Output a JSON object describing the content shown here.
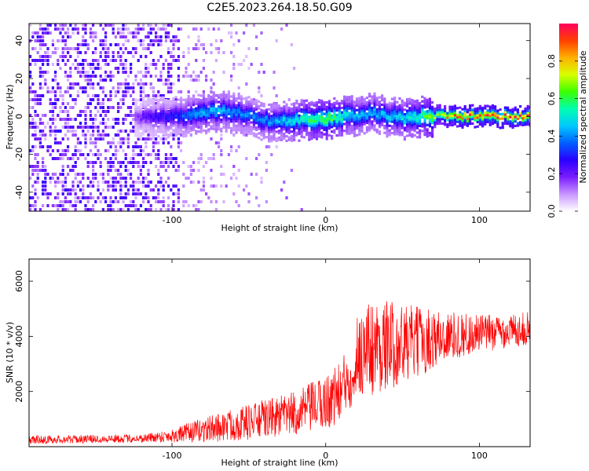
{
  "title": "C2E5.2023.264.18.50.G09",
  "chart_data": [
    {
      "type": "heatmap",
      "xlabel": "Height of straight line (km)",
      "ylabel": "Frequency (Hz)",
      "xlim": [
        -193,
        133
      ],
      "ylim": [
        -50,
        49
      ],
      "xticks": [
        -100,
        0,
        100
      ],
      "xtick_labels": [
        "-100",
        "0",
        "100"
      ],
      "yticks": [
        -40,
        -20,
        0,
        20,
        40
      ],
      "ytick_labels": [
        "-40",
        "-20",
        "0",
        "20",
        "40"
      ],
      "colorbar": {
        "label": "Normalized spectral amplitude",
        "range": [
          0,
          1
        ],
        "ticks": [
          0.0,
          0.2,
          0.4,
          0.6,
          0.8
        ],
        "tick_labels": [
          "0.0",
          "0.2",
          "0.4",
          "0.6",
          "0.8"
        ],
        "colormap": [
          "#ffffff",
          "#c896ff",
          "#7a1cff",
          "#2a00ff",
          "#0060ff",
          "#00c8ff",
          "#00ffb0",
          "#3cff00",
          "#d8ff00",
          "#ffb000",
          "#ff4000",
          "#ff0060"
        ]
      },
      "ridge": {
        "x": [
          -125,
          -115,
          -100,
          -90,
          -80,
          -70,
          -60,
          -50,
          -40,
          -30,
          -20,
          -10,
          0,
          10,
          20,
          30,
          40,
          50,
          60,
          70,
          80,
          90,
          100,
          110,
          120,
          133
        ],
        "frequency": [
          -1,
          0,
          0,
          1,
          2,
          3,
          2,
          0,
          -2,
          -3,
          -2,
          -1,
          -1,
          0,
          1,
          2,
          0,
          -1,
          0,
          0,
          0,
          0,
          0,
          0,
          0,
          0
        ],
        "amplitude": [
          0.15,
          0.25,
          0.3,
          0.4,
          0.45,
          0.45,
          0.42,
          0.38,
          0.4,
          0.45,
          0.5,
          0.6,
          0.65,
          0.55,
          0.45,
          0.45,
          0.45,
          0.5,
          0.55,
          0.7,
          0.85,
          0.9,
          0.9,
          0.92,
          0.92,
          0.92
        ]
      },
      "noise_region": {
        "x_start": -193,
        "x_dense_end": -95,
        "x_sparse_end": -15
      }
    },
    {
      "type": "line",
      "xlabel": "Height of straight line (km)",
      "ylabel": "SNR (10 * v/v)",
      "xlim": [
        -193,
        133
      ],
      "ylim": [
        0,
        6800
      ],
      "xticks": [
        -100,
        0,
        100
      ],
      "xtick_labels": [
        "-100",
        "0",
        "100"
      ],
      "yticks": [
        2000,
        4000,
        6000
      ],
      "ytick_labels": [
        "2000",
        "4000",
        "6000"
      ],
      "line_color": "#ff0000",
      "series": [
        {
          "x": [
            -193,
            -150,
            -120,
            -100,
            -80,
            -60,
            -40,
            -20,
            -10,
            0,
            5,
            10,
            15,
            20,
            25,
            30,
            40,
            50,
            60,
            70,
            80,
            90,
            100,
            110,
            120,
            133
          ],
          "y_mean": [
            250,
            280,
            300,
            400,
            600,
            800,
            1000,
            1200,
            1400,
            1600,
            1800,
            2000,
            2500,
            3300,
            3500,
            3600,
            3700,
            3700,
            3800,
            3900,
            4000,
            4050,
            4100,
            4150,
            4200,
            4300
          ],
          "y_spread": [
            150,
            150,
            150,
            250,
            450,
            600,
            700,
            800,
            900,
            1000,
            1100,
            1100,
            1300,
            1500,
            1700,
            1800,
            1600,
            1500,
            1300,
            1100,
            900,
            800,
            700,
            650,
            600,
            600
          ]
        }
      ]
    }
  ]
}
